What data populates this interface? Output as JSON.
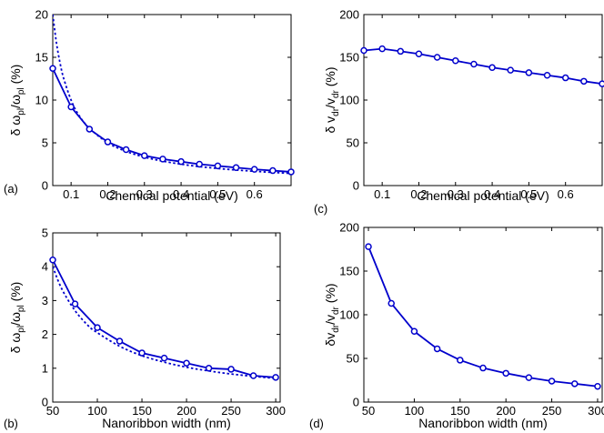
{
  "chart_data": [
    {
      "id": "a",
      "type": "line",
      "panel_label": "(a)",
      "xlabel": "Chemical potential (eV)",
      "ylabel_parts": [
        "δ ω",
        "pl",
        "/ω",
        "pl",
        " (%)"
      ],
      "xlim": [
        0.05,
        0.7
      ],
      "ylim": [
        0,
        20
      ],
      "xticks": [
        0.1,
        0.2,
        0.3,
        0.4,
        0.5,
        0.6
      ],
      "xtick_labels": [
        "0.1",
        "0.2",
        "0.3",
        "0.4",
        "0.5",
        "0.6"
      ],
      "yticks": [
        0,
        5,
        10,
        15,
        20
      ],
      "ytick_labels": [
        "0",
        "5",
        "10",
        "15",
        "20"
      ],
      "grid": false,
      "series": [
        {
          "style": "solid-markers",
          "color": "#0000cc",
          "x": [
            0.05,
            0.1,
            0.15,
            0.2,
            0.25,
            0.3,
            0.35,
            0.4,
            0.45,
            0.5,
            0.55,
            0.6,
            0.65,
            0.7
          ],
          "y": [
            13.7,
            9.2,
            6.6,
            5.1,
            4.2,
            3.5,
            3.1,
            2.8,
            2.5,
            2.3,
            2.1,
            1.9,
            1.75,
            1.6
          ]
        },
        {
          "style": "dotted",
          "color": "#0000cc",
          "x": [
            0.05,
            0.06,
            0.07,
            0.08,
            0.1,
            0.12,
            0.15,
            0.2,
            0.25,
            0.3,
            0.35,
            0.4,
            0.45,
            0.5,
            0.55,
            0.6,
            0.65,
            0.7
          ],
          "y": [
            20,
            16.7,
            14.3,
            12.5,
            10.0,
            8.3,
            6.7,
            5.0,
            4.0,
            3.33,
            2.86,
            2.5,
            2.22,
            2.0,
            1.82,
            1.67,
            1.54,
            1.43
          ]
        }
      ]
    },
    {
      "id": "b",
      "type": "line",
      "panel_label": "(b)",
      "xlabel": "Nanoribbon width (nm)",
      "ylabel_parts": [
        "δ ω",
        "pl",
        "/ω",
        "pl",
        " (%)"
      ],
      "xlim": [
        50,
        305
      ],
      "ylim": [
        0,
        5
      ],
      "xticks": [
        50,
        100,
        150,
        200,
        250,
        300
      ],
      "xtick_labels": [
        "50",
        "100",
        "150",
        "200",
        "250",
        "300"
      ],
      "yticks": [
        0,
        1,
        2,
        3,
        4,
        5
      ],
      "ytick_labels": [
        "0",
        "1",
        "2",
        "3",
        "4",
        "5"
      ],
      "grid": false,
      "series": [
        {
          "style": "solid-markers",
          "color": "#0000cc",
          "x": [
            50,
            75,
            100,
            125,
            150,
            175,
            200,
            225,
            250,
            275,
            300
          ],
          "y": [
            4.2,
            2.9,
            2.2,
            1.8,
            1.45,
            1.3,
            1.15,
            1.0,
            0.97,
            0.78,
            0.73
          ]
        },
        {
          "style": "dotted",
          "color": "#0000cc",
          "x": [
            50,
            60,
            75,
            90,
            100,
            125,
            150,
            175,
            200,
            225,
            250,
            275,
            300
          ],
          "y": [
            4.0,
            3.35,
            2.7,
            2.25,
            2.05,
            1.65,
            1.37,
            1.18,
            1.03,
            0.92,
            0.83,
            0.76,
            0.7
          ]
        }
      ]
    },
    {
      "id": "c",
      "type": "line",
      "panel_label": "(c)",
      "xlabel": "Chemical potential (eV)",
      "ylabel_parts": [
        "δ v",
        "dr",
        "/v",
        "dr",
        " (%)"
      ],
      "xlim": [
        0.05,
        0.7
      ],
      "ylim": [
        0,
        200
      ],
      "xticks": [
        0.1,
        0.2,
        0.3,
        0.4,
        0.5,
        0.6
      ],
      "xtick_labels": [
        "0.1",
        "0.2",
        "0.3",
        "0.4",
        "0.5",
        "0.6"
      ],
      "yticks": [
        0,
        50,
        100,
        150,
        200
      ],
      "ytick_labels": [
        "0",
        "50",
        "100",
        "150",
        "200"
      ],
      "grid": false,
      "series": [
        {
          "style": "solid-markers",
          "color": "#0000cc",
          "x": [
            0.05,
            0.1,
            0.15,
            0.2,
            0.25,
            0.3,
            0.35,
            0.4,
            0.45,
            0.5,
            0.55,
            0.6,
            0.65,
            0.7
          ],
          "y": [
            158,
            160,
            157,
            154,
            150,
            146,
            142,
            138,
            135,
            132,
            129,
            126,
            122,
            119
          ]
        }
      ]
    },
    {
      "id": "d",
      "type": "line",
      "panel_label": "(d)",
      "xlabel": "Nanoribbon width (nm)",
      "ylabel_parts": [
        "δv",
        "dr",
        "/v",
        "dr",
        " (%)"
      ],
      "xlim": [
        45,
        305
      ],
      "ylim": [
        0,
        200
      ],
      "xticks": [
        50,
        100,
        150,
        200,
        250,
        300
      ],
      "xtick_labels": [
        "50",
        "100",
        "150",
        "200",
        "250",
        "300"
      ],
      "yticks": [
        0,
        50,
        100,
        150,
        200
      ],
      "ytick_labels": [
        "0",
        "50",
        "100",
        "150",
        "200"
      ],
      "grid": false,
      "series": [
        {
          "style": "solid-markers",
          "color": "#0000cc",
          "x": [
            50,
            75,
            100,
            125,
            150,
            175,
            200,
            225,
            250,
            275,
            300
          ],
          "y": [
            178,
            113,
            81,
            61,
            48,
            39,
            33,
            28,
            24,
            21,
            18
          ]
        }
      ]
    }
  ]
}
